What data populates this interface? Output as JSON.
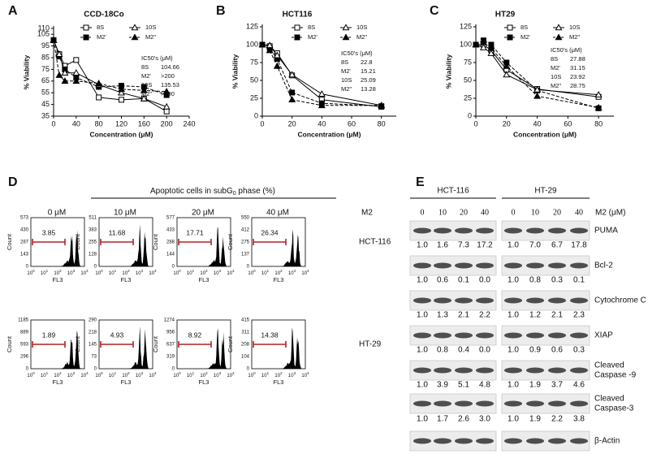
{
  "panel_labels": [
    "A",
    "B",
    "C",
    "D",
    "E"
  ],
  "chart_data": [
    {
      "type": "line",
      "title": "CCD-18Co",
      "xlabel": "Concentration (μM)",
      "ylabel": "% Viability",
      "x": [
        0,
        10,
        20,
        40,
        80,
        120,
        160,
        200
      ],
      "xlim": [
        0,
        240
      ],
      "xticks": [
        0,
        40,
        80,
        120,
        160,
        200,
        240
      ],
      "ylim": [
        35,
        110
      ],
      "yticks": [
        35,
        45,
        55,
        65,
        75,
        85,
        95,
        105,
        110
      ],
      "series": [
        {
          "name": "8S",
          "color": "#000000",
          "marker": "square-open",
          "dashed": false,
          "values": [
            100,
            88,
            78,
            83,
            51,
            49,
            50,
            39
          ]
        },
        {
          "name": "M2'",
          "color": "#000000",
          "marker": "square",
          "dashed": true,
          "values": [
            100,
            86,
            75,
            68,
            60,
            61,
            60,
            53
          ]
        },
        {
          "name": "10S",
          "color": "#000000",
          "marker": "triangle-open",
          "dashed": false,
          "values": [
            100,
            88,
            72,
            72,
            62,
            55,
            50,
            43
          ]
        },
        {
          "name": "M2''",
          "color": "#000000",
          "marker": "triangle",
          "dashed": true,
          "values": [
            100,
            70,
            65,
            65,
            63,
            58,
            57,
            56
          ]
        }
      ],
      "ic50": {
        "title": "IC50's (μM)",
        "values": [
          104.66,
          ">200",
          135.53,
          ">200"
        ]
      }
    },
    {
      "type": "line",
      "title": "HCT116",
      "xlabel": "Concentration (μM)",
      "ylabel": "% Viability",
      "x": [
        0,
        5,
        10,
        20,
        40,
        80
      ],
      "xlim": [
        0,
        90
      ],
      "xticks": [
        0,
        20,
        40,
        60,
        80
      ],
      "ylim": [
        0,
        125
      ],
      "yticks": [
        0,
        25,
        50,
        75,
        100,
        125
      ],
      "series": [
        {
          "name": "8S",
          "color": "#000000",
          "marker": "square-open",
          "dashed": false,
          "values": [
            100,
            98,
            88,
            57,
            23,
            13
          ]
        },
        {
          "name": "M2'",
          "color": "#000000",
          "marker": "square",
          "dashed": true,
          "values": [
            100,
            95,
            80,
            33,
            18,
            14
          ]
        },
        {
          "name": "10S",
          "color": "#000000",
          "marker": "triangle-open",
          "dashed": false,
          "values": [
            100,
            99,
            85,
            58,
            31,
            15
          ]
        },
        {
          "name": "M2''",
          "color": "#000000",
          "marker": "triangle",
          "dashed": true,
          "values": [
            100,
            92,
            70,
            23,
            15,
            15
          ]
        }
      ],
      "ic50": {
        "title": "IC50's (μM)",
        "values": [
          22.8,
          15.21,
          25.09,
          13.28
        ]
      }
    },
    {
      "type": "line",
      "title": "HT29",
      "xlabel": "Concentration (μM)",
      "ylabel": "% Viability",
      "x": [
        0,
        5,
        10,
        20,
        40,
        80
      ],
      "xlim": [
        0,
        90
      ],
      "xticks": [
        0,
        20,
        40,
        60,
        80
      ],
      "ylim": [
        0,
        125
      ],
      "yticks": [
        0,
        25,
        50,
        75,
        100,
        125
      ],
      "series": [
        {
          "name": "8S",
          "color": "#000000",
          "marker": "square-open",
          "dashed": false,
          "values": [
            100,
            100,
            92,
            65,
            38,
            27
          ]
        },
        {
          "name": "M2'",
          "color": "#000000",
          "marker": "square",
          "dashed": true,
          "values": [
            100,
            106,
            100,
            75,
            36,
            11
          ]
        },
        {
          "name": "10S",
          "color": "#000000",
          "marker": "triangle-open",
          "dashed": false,
          "values": [
            100,
            96,
            88,
            58,
            37,
            30
          ]
        },
        {
          "name": "M2''",
          "color": "#000000",
          "marker": "triangle",
          "dashed": true,
          "values": [
            100,
            103,
            95,
            70,
            28,
            12
          ]
        }
      ],
      "ic50": {
        "title": "IC50's (μM)",
        "values": [
          27.88,
          31.15,
          23.92,
          28.75
        ]
      }
    }
  ],
  "flow": {
    "title_parts": [
      "Apoptotic cells in subG",
      "0",
      " phase (%)"
    ],
    "treatment_label": "M2",
    "doses": [
      "0 μM",
      "10 μM",
      "20 μM",
      "40 μM"
    ],
    "x_label": "FL3",
    "y_label": "Count",
    "x_tick_base": "10",
    "x_tick_exponents": [
      "0",
      "1",
      "2",
      "3",
      "4"
    ],
    "rows": [
      {
        "cell_line": "HCT-116",
        "percentages": [
          3.85,
          11.68,
          17.71,
          26.34
        ],
        "y_ticks": [
          [
            573,
            430,
            287,
            143,
            0
          ],
          [
            511,
            383,
            255,
            128,
            0
          ],
          [
            577,
            433,
            288,
            144,
            0
          ],
          [
            550,
            412,
            275,
            137,
            0
          ]
        ]
      },
      {
        "cell_line": "HT-29",
        "percentages": [
          1.89,
          4.93,
          8.92,
          14.38
        ],
        "y_ticks": [
          [
            1185,
            889,
            593,
            296,
            0
          ],
          [
            290,
            218,
            145,
            73,
            0
          ],
          [
            1274,
            956,
            637,
            319,
            0
          ],
          [
            415,
            311,
            208,
            104,
            0
          ]
        ]
      }
    ]
  },
  "western": {
    "cell_lines": [
      "HCT-116",
      "HT-29"
    ],
    "doses": [
      "0",
      "10",
      "20",
      "40"
    ],
    "dose_label": "M2 (μM)",
    "proteins": [
      {
        "label": [
          "PUMA"
        ],
        "ratios": [
          [
            "1.0",
            "1.6",
            "7.3",
            "17.2"
          ],
          [
            "1.0",
            "7.0",
            "6.7",
            "17.8"
          ]
        ]
      },
      {
        "label": [
          "Bcl-2"
        ],
        "ratios": [
          [
            "1.0",
            "0.6",
            "0.1",
            "0.0"
          ],
          [
            "1.0",
            "0.8",
            "0.3",
            "0.1"
          ]
        ]
      },
      {
        "label": [
          "Cytochrome C"
        ],
        "ratios": [
          [
            "1.0",
            "1.3",
            "2.1",
            "2.2"
          ],
          [
            "1.0",
            "1.2",
            "2.1",
            "2.3"
          ]
        ]
      },
      {
        "label": [
          "XIAP"
        ],
        "ratios": [
          [
            "1.0",
            "0.8",
            "0.4",
            "0.0"
          ],
          [
            "1.0",
            "0.9",
            "0.6",
            "0.3"
          ]
        ]
      },
      {
        "label": [
          "Cleaved",
          "Caspase -9"
        ],
        "ratios": [
          [
            "1.0",
            "3.9",
            "5.1",
            "4.8"
          ],
          [
            "1.0",
            "1.9",
            "3.7",
            "4.6"
          ]
        ]
      },
      {
        "label": [
          "Cleaved",
          "Caspase-3"
        ],
        "ratios": [
          [
            "1.0",
            "1.7",
            "2.6",
            "3.0"
          ],
          [
            "1.0",
            "1.9",
            "2.2",
            "3.8"
          ]
        ]
      },
      {
        "label": [
          "β-Actin"
        ]
      }
    ]
  }
}
